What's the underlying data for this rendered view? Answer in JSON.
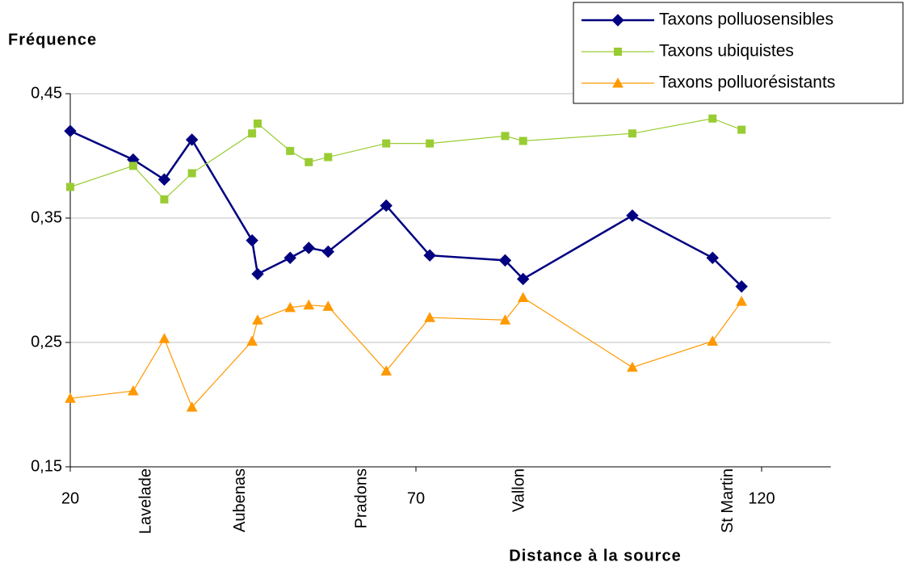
{
  "chart_data": {
    "type": "line",
    "y_label": "Fréquence",
    "x_label": "Distance à la source",
    "x": [
      20,
      29.1,
      33.6,
      37.6,
      46.3,
      47.1,
      51.8,
      54.5,
      57.3,
      65.7,
      72.0,
      82.9,
      85.5,
      101.3,
      112.9,
      117.1
    ],
    "series": [
      {
        "name": "Taxons polluosensibles",
        "color": "#000080",
        "marker": "diamond",
        "values": [
          0.42,
          0.397,
          0.381,
          0.413,
          0.332,
          0.305,
          0.318,
          0.326,
          0.323,
          0.36,
          0.32,
          0.316,
          0.301,
          0.352,
          0.318,
          0.295
        ]
      },
      {
        "name": "Taxons ubiquistes",
        "color": "#99cc33",
        "marker": "square",
        "values": [
          0.375,
          0.392,
          0.365,
          0.386,
          0.418,
          0.426,
          0.404,
          0.395,
          0.399,
          0.41,
          0.41,
          0.416,
          0.412,
          0.418,
          0.43,
          0.421
        ]
      },
      {
        "name": "Taxons polluorésistants",
        "color": "#ff9900",
        "marker": "triangle",
        "values": [
          0.205,
          0.211,
          0.253,
          0.198,
          0.251,
          0.268,
          0.278,
          0.28,
          0.279,
          0.227,
          0.27,
          0.268,
          0.286,
          0.23,
          0.251,
          0.283
        ]
      }
    ],
    "xlim": [
      20,
      130
    ],
    "xticks": [
      20,
      70,
      120
    ],
    "x_place_labels": [
      {
        "value": 31,
        "label": "Lavelade"
      },
      {
        "value": 44.6,
        "label": "Aubenas"
      },
      {
        "value": 62.2,
        "label": "Pradons"
      },
      {
        "value": 85,
        "label": "Vallon"
      },
      {
        "value": 115.2,
        "label": "St Martin"
      }
    ],
    "ylim": [
      0.15,
      0.45
    ],
    "yticks": [
      {
        "value": 0.15,
        "label": "0,15"
      },
      {
        "value": 0.25,
        "label": "0,25"
      },
      {
        "value": 0.35,
        "label": "0,35"
      },
      {
        "value": 0.45,
        "label": "0,45"
      }
    ],
    "grid": true,
    "legend": "top-right"
  }
}
